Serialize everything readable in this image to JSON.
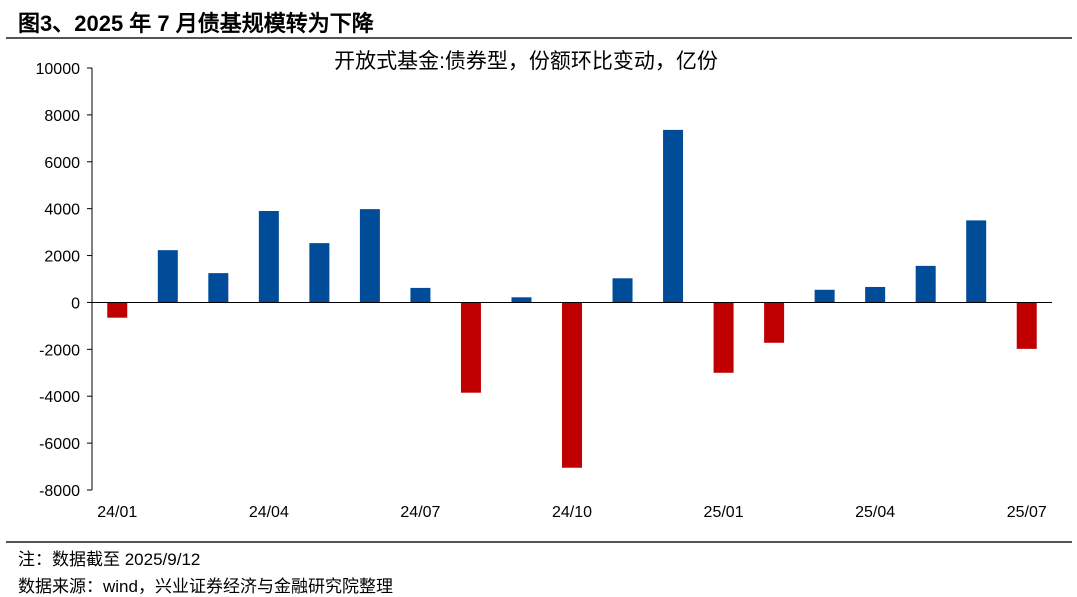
{
  "figure_title": "图3、2025 年 7 月债基规模转为下降",
  "note": "注：数据截至 2025/9/12",
  "source": "数据来源：wind，兴业证券经济与金融研究院整理",
  "chart_data": {
    "type": "bar",
    "title": "开放式基金:债券型，份额环比变动，亿份",
    "xlabel": "",
    "ylabel": "",
    "ylim": [
      -8000,
      10000
    ],
    "yticks": [
      10000,
      8000,
      6000,
      4000,
      2000,
      0,
      -2000,
      -4000,
      -6000,
      -8000
    ],
    "categories": [
      "24/01",
      "24/02",
      "24/03",
      "24/04",
      "24/05",
      "24/06",
      "24/07",
      "24/08",
      "24/09",
      "24/10",
      "24/11",
      "24/12",
      "25/01",
      "25/02",
      "25/03",
      "25/04",
      "25/05",
      "25/06",
      "25/07"
    ],
    "xtick_labels": [
      "24/01",
      "24/04",
      "24/07",
      "24/10",
      "25/01",
      "25/04",
      "25/07"
    ],
    "values": [
      -650,
      2230,
      1250,
      3900,
      2530,
      3980,
      620,
      -3850,
      220,
      -7050,
      1030,
      7360,
      -3000,
      -1720,
      540,
      660,
      1560,
      3500,
      -1980
    ],
    "grid": false,
    "legend": "none",
    "colors": {
      "positive": "#004C98",
      "negative": "#C00000"
    }
  }
}
